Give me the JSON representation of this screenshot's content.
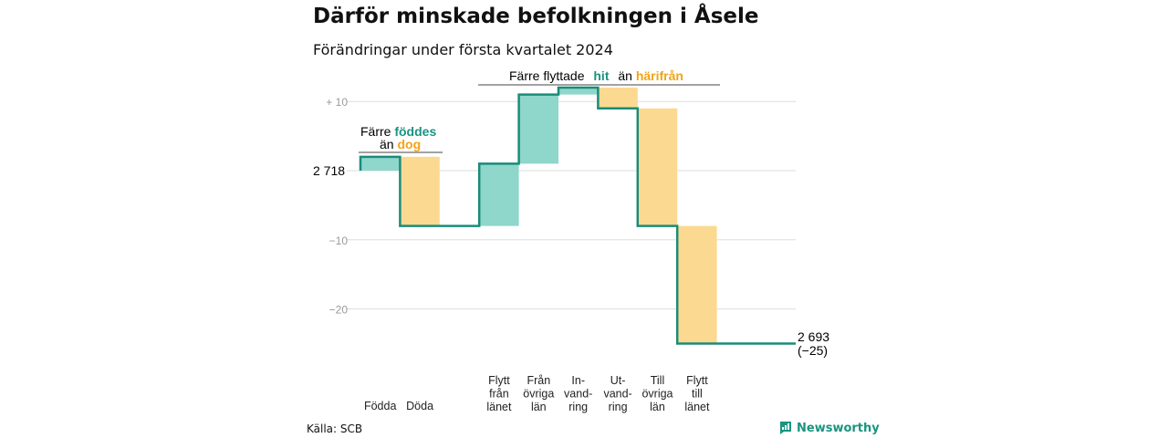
{
  "title": "Därför minskade befolkningen i Åsele",
  "subtitle": "Förändringar under första kvartalet 2024",
  "source": "Källa: SCB",
  "brand": "Newsworthy",
  "annotations": {
    "births": {
      "line1": "Färre",
      "hl1": "föddes",
      "line2": "än",
      "hl2": "dog"
    },
    "migration": {
      "pre": "Färre flyttade",
      "hl1": "hit",
      "mid": "än",
      "hl2": "härifrån"
    }
  },
  "colors": {
    "teal": "#1a9480",
    "teal_fill": "#8fd6cb",
    "orange": "#f2a416",
    "orange_fill": "#fcd990",
    "line": "#1a8c79"
  },
  "chart_data": {
    "type": "waterfall",
    "start_value": 2718,
    "start_label": "2 718",
    "end_label_value": "2 693",
    "end_label_change": "(−25)",
    "unit": "change in population relative to start",
    "y_ticks": [
      {
        "value": 10,
        "label": "+ 10"
      },
      {
        "value": -10,
        "label": "−10"
      },
      {
        "value": -20,
        "label": "−20"
      }
    ],
    "steps": [
      {
        "label": [
          "Födda"
        ],
        "value": 2,
        "kind": "in"
      },
      {
        "label": [
          "Döda"
        ],
        "value": -10,
        "kind": "out"
      },
      {
        "label": [],
        "value": 0,
        "kind": "gap"
      },
      {
        "label": [
          "Flytt",
          "från",
          "länet"
        ],
        "value": 9,
        "kind": "in"
      },
      {
        "label": [
          "Från",
          "övriga",
          "län"
        ],
        "value": 10,
        "kind": "in"
      },
      {
        "label": [
          "In-",
          "vand-",
          "ring"
        ],
        "value": 1,
        "kind": "in"
      },
      {
        "label": [
          "Ut-",
          "vand-",
          "ring"
        ],
        "value": -3,
        "kind": "out"
      },
      {
        "label": [
          "Till",
          "övriga",
          "län"
        ],
        "value": -17,
        "kind": "out"
      },
      {
        "label": [
          "Flytt",
          "till",
          "länet"
        ],
        "value": -17,
        "kind": "out"
      }
    ],
    "grid": true
  }
}
